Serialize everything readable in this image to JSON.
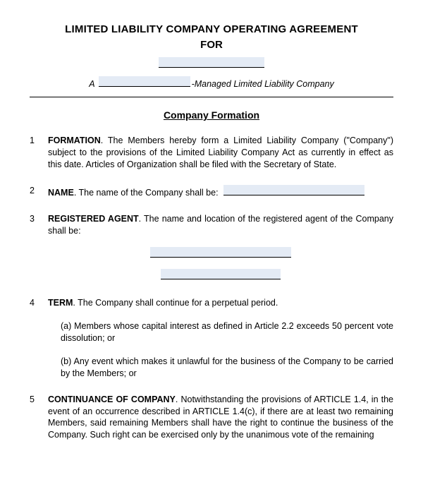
{
  "header": {
    "title_line1": "LIMITED LIABILITY COMPANY OPERATING AGREEMENT",
    "title_line2": "FOR",
    "subtitle_prefix": "A",
    "subtitle_suffix": "-Managed Limited Liability Company"
  },
  "section": {
    "heading": "Company Formation"
  },
  "clauses": [
    {
      "title": "FORMATION",
      "body": ". The Members hereby form a Limited Liability Company (\"Company\") subject to the provisions of the Limited Liability Company Act as currently in effect as this date. Articles of Organization shall be filed with the Secretary of State."
    },
    {
      "title": "NAME",
      "body": ". The name of the Company shall be:"
    },
    {
      "title": "REGISTERED AGENT",
      "body": ". The name and location of the registered agent of the Company shall be:"
    },
    {
      "title": "TERM",
      "body": ". The Company shall continue for a perpetual period.",
      "sub_a": "(a) Members whose capital interest as defined in Article 2.2 exceeds 50 percent vote dissolution; or",
      "sub_b": "(b) Any event which makes it unlawful for the business of the Company to be carried by the  Members; or"
    },
    {
      "title": "CONTINUANCE OF COMPANY",
      "body": ". Notwithstanding the provisions of ARTICLE 1.4, in the event of an occurrence described in ARTICLE 1.4(c), if there are at least two remaining Members, said remaining Members shall have the right to continue the business of the Company. Such right can be exercised only by the unanimous vote of the remaining"
    }
  ]
}
